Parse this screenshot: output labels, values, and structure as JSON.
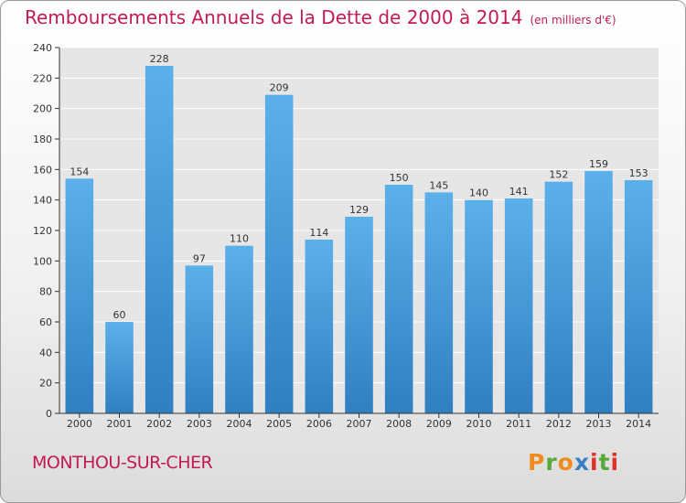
{
  "header": {
    "title": "Remboursements Annuels de la Dette de 2000 à 2014",
    "unit": "(en milliers d'€)"
  },
  "footer": {
    "town": "MONTHOU-SUR-CHER",
    "logo_text": "Proxiti",
    "logo_colors": [
      "#f08c1e",
      "#58a83a",
      "#f08c1e",
      "#3a7ec6",
      "#e0302a",
      "#58a83a",
      "#e0302a"
    ]
  },
  "chart_data": {
    "type": "bar",
    "title": "Remboursements Annuels de la Dette de 2000 à 2014",
    "subtitle": "(en milliers d'€)",
    "xlabel": "",
    "ylabel": "",
    "categories": [
      "2000",
      "2001",
      "2002",
      "2003",
      "2004",
      "2005",
      "2006",
      "2007",
      "2008",
      "2009",
      "2010",
      "2011",
      "2012",
      "2013",
      "2014"
    ],
    "values": [
      154,
      60,
      228,
      97,
      110,
      209,
      114,
      129,
      150,
      145,
      140,
      141,
      152,
      159,
      153
    ],
    "ylim": [
      0,
      240
    ],
    "yticks": [
      0,
      20,
      40,
      60,
      80,
      100,
      120,
      140,
      160,
      180,
      200,
      220,
      240
    ],
    "grid": true,
    "colors": {
      "bar_light": "#5cb0ea",
      "bar_dark": "#2f7fc1",
      "plot_bg": "#e6e6e6",
      "grid": "#ffffff"
    }
  }
}
